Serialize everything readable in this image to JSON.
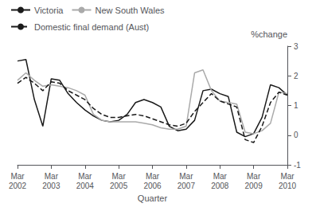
{
  "chart_data": {
    "type": "line",
    "xlabel": "Quarter",
    "ylabel": "%change",
    "categories": [
      "Mar\n2002",
      null,
      null,
      null,
      "Mar\n2003",
      null,
      null,
      null,
      "Mar\n2004",
      null,
      null,
      null,
      "Mar\n2005",
      null,
      null,
      null,
      "Mar\n2006",
      null,
      null,
      null,
      "Mar\n2007",
      null,
      null,
      null,
      "Mar\n2008",
      null,
      null,
      null,
      "Mar\n2009",
      null,
      null,
      null,
      "Mar\n2010"
    ],
    "series": [
      {
        "name": "Victoria",
        "color": "#1a1a1a",
        "line_style": "solid",
        "values": [
          2.5,
          2.55,
          1.2,
          0.3,
          1.9,
          1.85,
          1.4,
          1.1,
          0.85,
          0.65,
          0.5,
          0.45,
          0.5,
          0.7,
          1.1,
          1.2,
          1.1,
          0.95,
          0.3,
          0.15,
          0.2,
          0.5,
          1.5,
          1.55,
          1.4,
          1.3,
          0.1,
          -0.05,
          0.05,
          0.6,
          1.7,
          1.6,
          1.35
        ]
      },
      {
        "name": "New South Wales",
        "color": "#aaaaaa",
        "line_style": "solid",
        "values": [
          1.85,
          2.1,
          1.85,
          1.65,
          1.7,
          1.65,
          1.6,
          1.5,
          1.35,
          0.7,
          0.5,
          0.45,
          0.45,
          0.45,
          0.45,
          0.4,
          0.35,
          0.25,
          0.2,
          0.2,
          0.3,
          2.1,
          2.2,
          1.5,
          1.15,
          1.1,
          1.05,
          0.1,
          0.05,
          0.15,
          0.4,
          1.45,
          1.4
        ]
      },
      {
        "name": "Domestic final demand (Aust)",
        "color": "#1a1a1a",
        "line_style": "dashed",
        "values": [
          1.75,
          1.95,
          1.75,
          1.5,
          1.8,
          1.75,
          1.5,
          1.35,
          1.2,
          0.9,
          0.7,
          0.6,
          0.6,
          0.65,
          0.7,
          0.65,
          0.55,
          0.45,
          0.35,
          0.3,
          0.4,
          0.8,
          1.1,
          1.4,
          1.15,
          1.05,
          0.95,
          -0.15,
          -0.25,
          0.3,
          1.1,
          1.45,
          1.35
        ]
      }
    ],
    "ylim": [
      -1,
      3
    ],
    "yticks": [
      -1,
      0,
      1,
      2,
      3
    ],
    "grid": false,
    "legend": "upper left"
  }
}
